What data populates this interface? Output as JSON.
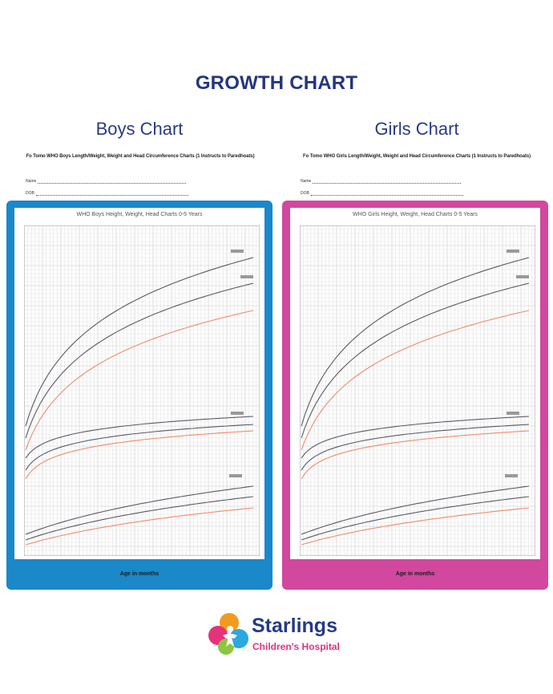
{
  "page": {
    "title": "GROWTH CHART"
  },
  "boys": {
    "title": "Boys Chart",
    "sheet_heading": "Fo Tomo WHO Boys Length/Weight, Weight and Head Circumference Charts (1 Instructs to Paredhoats)",
    "name_label": "Name",
    "dob_label": "DOB",
    "inner_title": "WHO Boys Height, Weight, Head Charts 0-5 Years",
    "x_axis_label": "Age in months",
    "frame_color": "#1a88c9"
  },
  "girls": {
    "title": "Girls Chart",
    "sheet_heading": "Fo Tomo WHO Girls Length/Weight, Weight and Head Circumference Charts (1 Instructs to Paredhoats)",
    "name_label": "Name",
    "dob_label": "DOB",
    "inner_title": "WHO Girls Height, Weight, Head Charts 0-5 Years",
    "x_axis_label": "Age in months",
    "frame_color": "#d1489e"
  },
  "brand": {
    "name": "Starlings",
    "subtitle": "Children's Hospital",
    "logo_colors": [
      "#f39a1e",
      "#e4337b",
      "#2aa8df",
      "#8dc63f"
    ]
  },
  "curve_colors": {
    "upper": "#5a5a66",
    "median": "#5a5a66",
    "lower": "#ef8a6c"
  }
}
